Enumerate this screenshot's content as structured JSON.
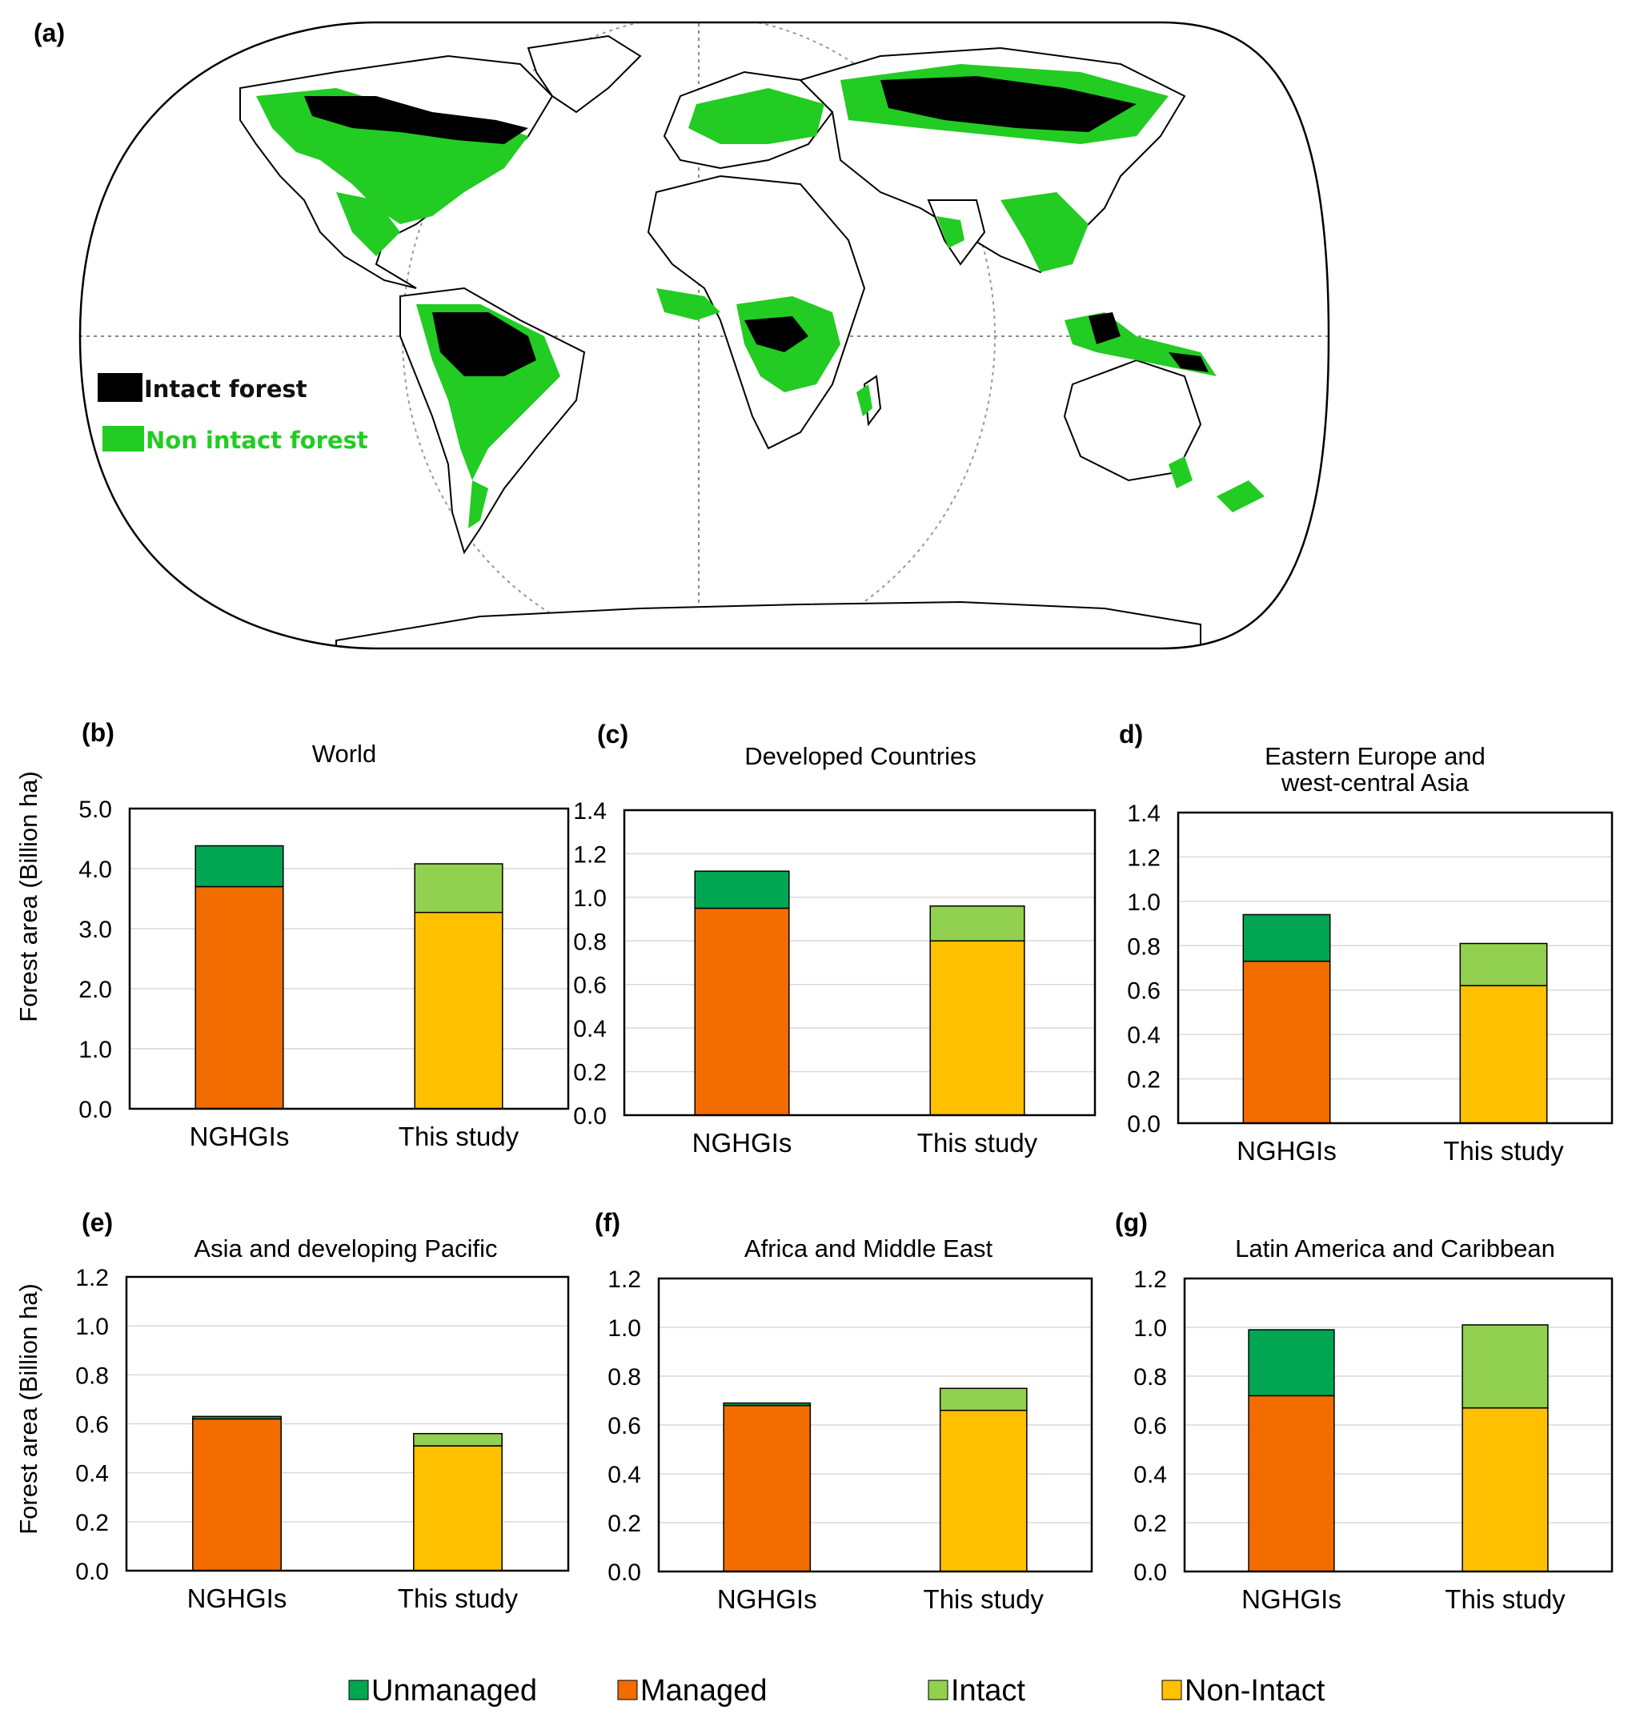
{
  "figure": {
    "map_panel": {
      "letter": "(a)",
      "legend": [
        {
          "label": "Intact forest",
          "swatch": "#000000",
          "text_color": "#111111"
        },
        {
          "label": "Non intact forest",
          "swatch": "#22cc22",
          "text_color": "#22cc22"
        }
      ]
    },
    "y_axis_title": "Forest area (Billion ha)",
    "legend": [
      {
        "label": "Unmanaged",
        "color": "#00a651"
      },
      {
        "label": "Managed",
        "color": "#f26c00"
      },
      {
        "label": "Intact",
        "color": "#92d050"
      },
      {
        "label": "Non-Intact",
        "color": "#ffc000"
      }
    ]
  },
  "chart_data": [
    {
      "letter": "(b)",
      "type": "bar",
      "stacked": true,
      "title": "World",
      "categories": [
        "NGHGIs",
        "This study"
      ],
      "yticks": [
        "0.0",
        "1.0",
        "2.0",
        "3.0",
        "4.0",
        "5.0"
      ],
      "ylim": [
        0,
        5
      ],
      "grid": true,
      "series": [
        {
          "name": "Managed",
          "values": [
            3.7,
            null
          ],
          "color": "#f26c00"
        },
        {
          "name": "Unmanaged",
          "values": [
            0.68,
            null
          ],
          "color": "#00a651"
        },
        {
          "name": "Non-Intact",
          "values": [
            null,
            3.27
          ],
          "color": "#ffc000"
        },
        {
          "name": "Intact",
          "values": [
            null,
            0.81
          ],
          "color": "#92d050"
        }
      ]
    },
    {
      "letter": "(c)",
      "type": "bar",
      "stacked": true,
      "title": "Developed Countries",
      "categories": [
        "NGHGIs",
        "This study"
      ],
      "yticks": [
        "0.0",
        "0.2",
        "0.4",
        "0.6",
        "0.8",
        "1.0",
        "1.2",
        "1.4"
      ],
      "ylim": [
        0,
        1.4
      ],
      "grid": true,
      "series": [
        {
          "name": "Managed",
          "values": [
            0.95,
            null
          ],
          "color": "#f26c00"
        },
        {
          "name": "Unmanaged",
          "values": [
            0.17,
            null
          ],
          "color": "#00a651"
        },
        {
          "name": "Non-Intact",
          "values": [
            null,
            0.8
          ],
          "color": "#ffc000"
        },
        {
          "name": "Intact",
          "values": [
            null,
            0.16
          ],
          "color": "#92d050"
        }
      ]
    },
    {
      "letter": "d)",
      "type": "bar",
      "stacked": true,
      "title": [
        "Eastern Europe and",
        "west-central Asia"
      ],
      "categories": [
        "NGHGIs",
        "This study"
      ],
      "yticks": [
        "0.0",
        "0.2",
        "0.4",
        "0.6",
        "0.8",
        "1.0",
        "1.2",
        "1.4"
      ],
      "ylim": [
        0,
        1.4
      ],
      "grid": true,
      "series": [
        {
          "name": "Managed",
          "values": [
            0.73,
            null
          ],
          "color": "#f26c00"
        },
        {
          "name": "Unmanaged",
          "values": [
            0.21,
            null
          ],
          "color": "#00a651"
        },
        {
          "name": "Non-Intact",
          "values": [
            null,
            0.62
          ],
          "color": "#ffc000"
        },
        {
          "name": "Intact",
          "values": [
            null,
            0.19
          ],
          "color": "#92d050"
        }
      ]
    },
    {
      "letter": "(e)",
      "type": "bar",
      "stacked": true,
      "title": "Asia and developing Pacific",
      "categories": [
        "NGHGIs",
        "This study"
      ],
      "yticks": [
        "0.0",
        "0.2",
        "0.4",
        "0.6",
        "0.8",
        "1.0",
        "1.2"
      ],
      "ylim": [
        0,
        1.2
      ],
      "grid": true,
      "series": [
        {
          "name": "Managed",
          "values": [
            0.62,
            null
          ],
          "color": "#f26c00"
        },
        {
          "name": "Unmanaged",
          "values": [
            0.01,
            null
          ],
          "color": "#00a651"
        },
        {
          "name": "Non-Intact",
          "values": [
            null,
            0.51
          ],
          "color": "#ffc000"
        },
        {
          "name": "Intact",
          "values": [
            null,
            0.05
          ],
          "color": "#92d050"
        }
      ]
    },
    {
      "letter": "(f)",
      "type": "bar",
      "stacked": true,
      "title": "Africa and Middle East",
      "categories": [
        "NGHGIs",
        "This study"
      ],
      "yticks": [
        "0.0",
        "0.2",
        "0.4",
        "0.6",
        "0.8",
        "1.0",
        "1.2"
      ],
      "ylim": [
        0,
        1.2
      ],
      "grid": true,
      "series": [
        {
          "name": "Managed",
          "values": [
            0.68,
            null
          ],
          "color": "#f26c00"
        },
        {
          "name": "Unmanaged",
          "values": [
            0.01,
            null
          ],
          "color": "#00a651"
        },
        {
          "name": "Non-Intact",
          "values": [
            null,
            0.66
          ],
          "color": "#ffc000"
        },
        {
          "name": "Intact",
          "values": [
            null,
            0.09
          ],
          "color": "#92d050"
        }
      ]
    },
    {
      "letter": "(g)",
      "type": "bar",
      "stacked": true,
      "title": "Latin America and Caribbean",
      "categories": [
        "NGHGIs",
        "This study"
      ],
      "yticks": [
        "0.0",
        "0.2",
        "0.4",
        "0.6",
        "0.8",
        "1.0",
        "1.2"
      ],
      "ylim": [
        0,
        1.2
      ],
      "grid": true,
      "series": [
        {
          "name": "Managed",
          "values": [
            0.72,
            null
          ],
          "color": "#f26c00"
        },
        {
          "name": "Unmanaged",
          "values": [
            0.27,
            null
          ],
          "color": "#00a651"
        },
        {
          "name": "Non-Intact",
          "values": [
            null,
            0.67
          ],
          "color": "#ffc000"
        },
        {
          "name": "Intact",
          "values": [
            null,
            0.34
          ],
          "color": "#92d050"
        }
      ]
    }
  ]
}
